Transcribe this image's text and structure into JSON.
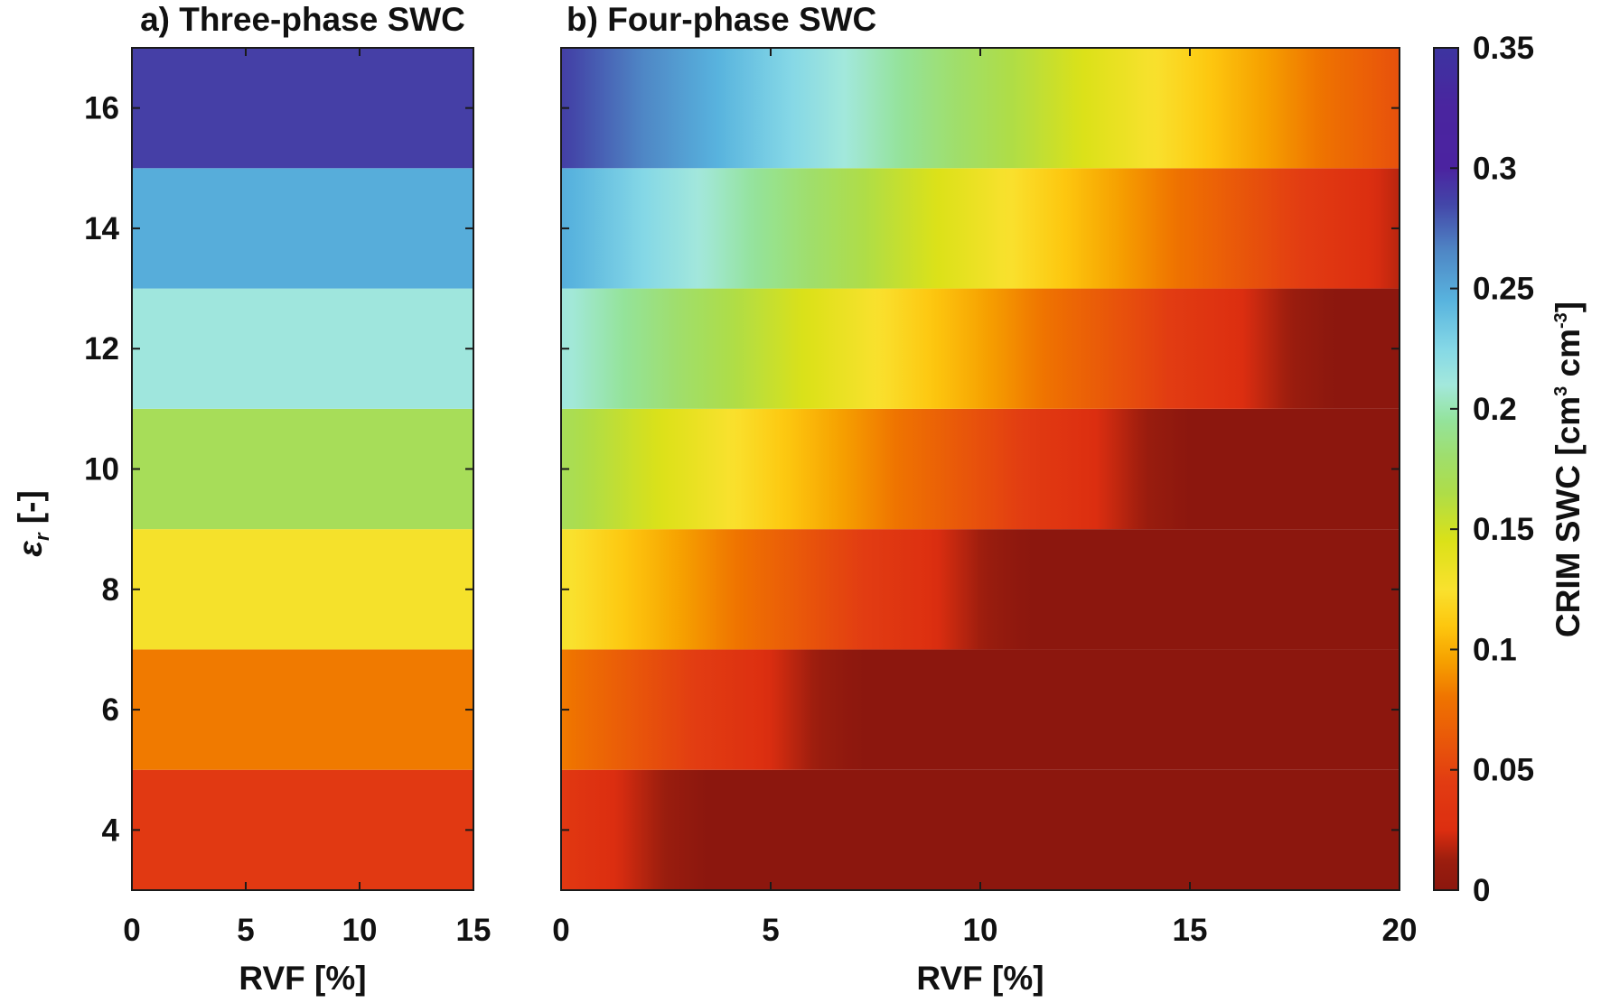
{
  "chart_data": [
    {
      "type": "heatmap",
      "panel": "a",
      "title": "a) Three-phase SWC",
      "xlabel": "RVF [%]",
      "ylabel": "εr [-]",
      "xlim": [
        0,
        15
      ],
      "ylim": [
        3,
        17
      ],
      "xticks": [
        "0",
        "5",
        "10",
        "15"
      ],
      "yticks": [
        "4",
        "6",
        "8",
        "10",
        "12",
        "14",
        "16"
      ],
      "er_values": [
        4,
        6,
        8,
        10,
        12,
        14,
        16
      ],
      "swc_values": [
        0.04,
        0.082,
        0.128,
        0.172,
        0.212,
        0.248,
        0.288
      ],
      "note": "SWC constant across RVF for each εr band"
    },
    {
      "type": "heatmap",
      "panel": "b",
      "title": "b) Four-phase SWC",
      "xlabel": "RVF [%]",
      "xlim": [
        0,
        20
      ],
      "ylim": [
        3,
        17
      ],
      "xticks": [
        "0",
        "5",
        "10",
        "15",
        "20"
      ],
      "er_values": [
        4,
        6,
        8,
        10,
        12,
        14,
        16
      ],
      "swc_at_rvf0": [
        0.04,
        0.082,
        0.128,
        0.172,
        0.212,
        0.248,
        0.288
      ],
      "swc_slope_per_percent_rvf": -0.0115,
      "min_swc": 0
    }
  ],
  "colorbar": {
    "label_main": "CRIM SWC [cm",
    "label_sup1": "3",
    "label_mid": " cm",
    "label_sup2": "-3",
    "label_end": "]",
    "clim": [
      0,
      0.35
    ],
    "ticks": [
      "0",
      "0.05",
      "0.1",
      "0.15",
      "0.2",
      "0.25",
      "0.3",
      "0.35"
    ],
    "tick_values": [
      0,
      0.05,
      0.1,
      0.15,
      0.2,
      0.25,
      0.3,
      0.35
    ],
    "colormap": [
      [
        0.0,
        "#8c170e"
      ],
      [
        0.012,
        "#9a1d0e"
      ],
      [
        0.025,
        "#dc2e10"
      ],
      [
        0.045,
        "#e23c12"
      ],
      [
        0.065,
        "#ea5c08"
      ],
      [
        0.08,
        "#ef7400"
      ],
      [
        0.095,
        "#f6a000"
      ],
      [
        0.11,
        "#fdc70f"
      ],
      [
        0.125,
        "#f9e12e"
      ],
      [
        0.145,
        "#dbe118"
      ],
      [
        0.165,
        "#aedd48"
      ],
      [
        0.18,
        "#9fde6c"
      ],
      [
        0.195,
        "#94e39b"
      ],
      [
        0.21,
        "#a3e8dc"
      ],
      [
        0.225,
        "#85d8e6"
      ],
      [
        0.245,
        "#58b3de"
      ],
      [
        0.265,
        "#4f88c6"
      ],
      [
        0.285,
        "#4346a8"
      ],
      [
        0.3,
        "#4b23a0"
      ],
      [
        0.325,
        "#4a259f"
      ],
      [
        0.35,
        "#3d34a0"
      ]
    ]
  },
  "ylabel_main": "ε",
  "ylabel_sub": "r",
  "ylabel_end": " [-]"
}
